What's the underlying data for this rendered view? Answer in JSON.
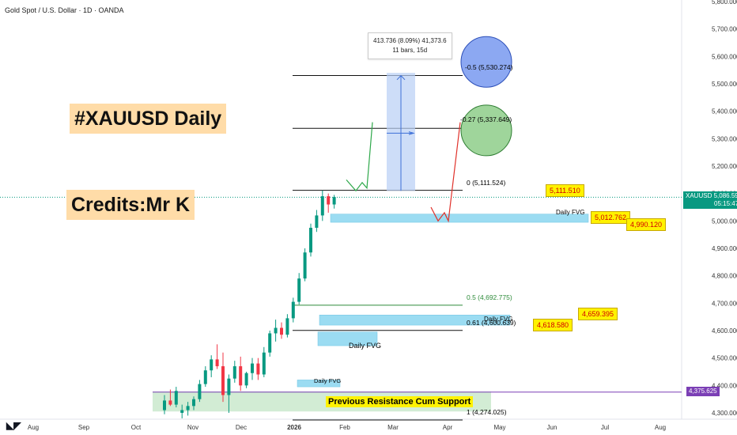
{
  "header": "Gold Spot / U.S. Dollar · 1D · OANDA",
  "title_boxes": [
    {
      "text": "#XAUUSD Daily"
    },
    {
      "text": "Credits:Mr K"
    }
  ],
  "measure": {
    "line1": "413.736 (8.09%) 41,373.6",
    "line2": "11 bars, 15d"
  },
  "fib_labels": [
    {
      "text": "-0.5 (5,530.274)",
      "color": "#111111"
    },
    {
      "text": "-0.27 (5,337.649)",
      "color": "#111111"
    },
    {
      "text": "0 (5,111.524)",
      "color": "#111111"
    },
    {
      "text": "0.5 (4,692.775)",
      "color": "#2e8b3a"
    },
    {
      "text": "0.61 (4,600.639)",
      "color": "#111111"
    },
    {
      "text": "1 (4,274.025)",
      "color": "#111111"
    }
  ],
  "fvg_labels": [
    "Daily FVG",
    "Daily FVG",
    "Daily FVG",
    "Daily FVG"
  ],
  "support_label": "Previous Resistance Cum Support",
  "callouts": [
    "5,111.510",
    "5,012.762",
    "4,990.120",
    "4,659.395",
    "4,618.580"
  ],
  "symbol_tag": {
    "symbol": "XAUUSD",
    "price": "5,086.595",
    "time": "05:15:47",
    "color": "#089981"
  },
  "support_tag": {
    "price": "4,375.625",
    "color": "#7b3fb5"
  },
  "colors": {
    "up": "#089981",
    "down": "#f23645",
    "fvg": "#9bdcf2",
    "support": "#d2ecd4",
    "purple": "#7b3fb5",
    "green_arrow": "#2ea84a",
    "red_arrow": "#e0312a"
  },
  "chart_data": {
    "type": "candlestick",
    "symbol": "XAUUSD",
    "timeframe": "1D",
    "y_ticks": [
      "5,800.000",
      "5,700.000",
      "5,600.000",
      "5,500.000",
      "5,400.000",
      "5,300.000",
      "5,200.000",
      "5,100.000",
      "5,000.000",
      "4,900.000",
      "4,800.000",
      "4,700.000",
      "4,600.000",
      "4,500.000",
      "4,400.000",
      "4,300.000"
    ],
    "x_ticks": [
      "Aug",
      "Sep",
      "Oct",
      "Nov",
      "Dec",
      "2026",
      "Feb",
      "Mar",
      "Apr",
      "May",
      "Jun",
      "Jul",
      "Aug"
    ],
    "ylim": [
      4272,
      5810
    ],
    "fib_levels": [
      {
        "ratio": "-0.5",
        "value": 5530.274
      },
      {
        "ratio": "-0.27",
        "value": 5337.649
      },
      {
        "ratio": "0",
        "value": 5111.524
      },
      {
        "ratio": "0.5",
        "value": 4692.775
      },
      {
        "ratio": "0.61",
        "value": 4600.639
      },
      {
        "ratio": "1",
        "value": 4274.025
      }
    ],
    "fvg_zones": [
      {
        "label": "Daily FVG",
        "top": 5025,
        "bottom": 4995
      },
      {
        "label": "Daily FVG",
        "top": 4657,
        "bottom": 4620
      },
      {
        "label": "Daily FVG",
        "top": 4595,
        "bottom": 4545
      },
      {
        "label": "Daily FVG",
        "top": 4420,
        "bottom": 4395
      }
    ],
    "support_zone": {
      "label": "Previous Resistance Cum Support",
      "top": 4378,
      "bottom": 4305
    },
    "support_line": 4375.625,
    "current_price": 5086.595,
    "candles": [
      {
        "o": 4310,
        "h": 4365,
        "l": 4295,
        "c": 4345
      },
      {
        "o": 4345,
        "h": 4385,
        "l": 4325,
        "c": 4330
      },
      {
        "o": 4330,
        "h": 4395,
        "l": 4320,
        "c": 4380
      },
      {
        "o": 4300,
        "h": 4330,
        "l": 4280,
        "c": 4310
      },
      {
        "o": 4310,
        "h": 4340,
        "l": 4290,
        "c": 4325
      },
      {
        "o": 4325,
        "h": 4360,
        "l": 4310,
        "c": 4350
      },
      {
        "o": 4350,
        "h": 4420,
        "l": 4340,
        "c": 4405
      },
      {
        "o": 4405,
        "h": 4470,
        "l": 4395,
        "c": 4455
      },
      {
        "o": 4455,
        "h": 4510,
        "l": 4430,
        "c": 4495
      },
      {
        "o": 4495,
        "h": 4550,
        "l": 4460,
        "c": 4470
      },
      {
        "o": 4470,
        "h": 4520,
        "l": 4340,
        "c": 4365
      },
      {
        "o": 4365,
        "h": 4440,
        "l": 4300,
        "c": 4425
      },
      {
        "o": 4425,
        "h": 4490,
        "l": 4410,
        "c": 4470
      },
      {
        "o": 4470,
        "h": 4505,
        "l": 4380,
        "c": 4400
      },
      {
        "o": 4400,
        "h": 4450,
        "l": 4390,
        "c": 4445
      },
      {
        "o": 4445,
        "h": 4500,
        "l": 4420,
        "c": 4480
      },
      {
        "o": 4480,
        "h": 4500,
        "l": 4420,
        "c": 4440
      },
      {
        "o": 4440,
        "h": 4540,
        "l": 4430,
        "c": 4520
      },
      {
        "o": 4520,
        "h": 4600,
        "l": 4505,
        "c": 4590
      },
      {
        "o": 4590,
        "h": 4640,
        "l": 4560,
        "c": 4610
      },
      {
        "o": 4610,
        "h": 4630,
        "l": 4570,
        "c": 4585
      },
      {
        "o": 4585,
        "h": 4660,
        "l": 4575,
        "c": 4645
      },
      {
        "o": 4645,
        "h": 4720,
        "l": 4630,
        "c": 4705
      },
      {
        "o": 4705,
        "h": 4810,
        "l": 4695,
        "c": 4790
      },
      {
        "o": 4790,
        "h": 4900,
        "l": 4780,
        "c": 4885
      },
      {
        "o": 4885,
        "h": 4990,
        "l": 4870,
        "c": 4975
      },
      {
        "o": 4975,
        "h": 5040,
        "l": 4960,
        "c": 5020
      },
      {
        "o": 5020,
        "h": 5111,
        "l": 5000,
        "c": 5090
      },
      {
        "o": 5090,
        "h": 5100,
        "l": 5030,
        "c": 5060
      },
      {
        "o": 5060,
        "h": 5095,
        "l": 5045,
        "c": 5087
      }
    ]
  }
}
